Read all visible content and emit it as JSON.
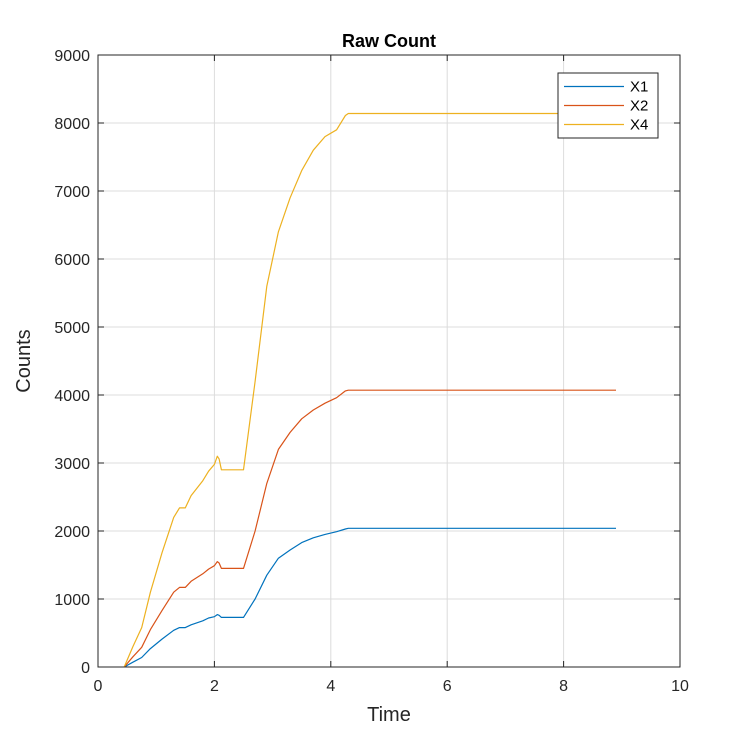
{
  "chart_data": {
    "type": "line",
    "title": "Raw Count",
    "xlabel": "Time",
    "ylabel": "Counts",
    "xlim": [
      0,
      10
    ],
    "ylim": [
      0,
      9000
    ],
    "xticks": [
      0,
      2,
      4,
      6,
      8,
      10
    ],
    "yticks": [
      0,
      1000,
      2000,
      3000,
      4000,
      5000,
      6000,
      7000,
      8000,
      9000
    ],
    "grid": true,
    "legend_position": "top-right",
    "series": [
      {
        "name": "X1",
        "color": "#0072BD",
        "x": [
          0.45,
          0.6,
          0.75,
          0.9,
          1.1,
          1.3,
          1.4,
          1.5,
          1.6,
          1.8,
          1.9,
          2.0,
          2.05,
          2.08,
          2.12,
          2.5,
          2.7,
          2.9,
          3.1,
          3.3,
          3.5,
          3.7,
          3.9,
          4.1,
          4.25,
          4.3,
          4.4,
          6.0,
          8.9
        ],
        "y": [
          0,
          70,
          140,
          270,
          410,
          540,
          580,
          580,
          620,
          680,
          720,
          740,
          770,
          760,
          730,
          730,
          1000,
          1350,
          1600,
          1720,
          1830,
          1900,
          1950,
          1990,
          2030,
          2040,
          2040,
          2040,
          2040
        ]
      },
      {
        "name": "X2",
        "color": "#D95319",
        "x": [
          0.45,
          0.6,
          0.75,
          0.9,
          1.1,
          1.3,
          1.4,
          1.5,
          1.6,
          1.8,
          1.9,
          2.0,
          2.05,
          2.08,
          2.12,
          2.5,
          2.7,
          2.9,
          3.1,
          3.3,
          3.5,
          3.7,
          3.9,
          4.1,
          4.25,
          4.3,
          4.4,
          6.0,
          8.9
        ],
        "y": [
          0,
          150,
          290,
          550,
          830,
          1100,
          1170,
          1170,
          1260,
          1370,
          1440,
          1490,
          1550,
          1530,
          1450,
          1450,
          2000,
          2700,
          3200,
          3450,
          3650,
          3780,
          3880,
          3960,
          4060,
          4070,
          4070,
          4070,
          4070
        ]
      },
      {
        "name": "X4",
        "color": "#EDB120",
        "x": [
          0.45,
          0.6,
          0.75,
          0.9,
          1.1,
          1.3,
          1.4,
          1.5,
          1.6,
          1.8,
          1.9,
          2.0,
          2.05,
          2.08,
          2.12,
          2.5,
          2.7,
          2.9,
          3.1,
          3.3,
          3.5,
          3.7,
          3.9,
          4.1,
          4.25,
          4.3,
          4.4,
          6.0,
          8.9
        ],
        "y": [
          0,
          300,
          580,
          1100,
          1680,
          2200,
          2340,
          2340,
          2520,
          2740,
          2880,
          2980,
          3100,
          3060,
          2900,
          2900,
          4200,
          5600,
          6400,
          6900,
          7300,
          7600,
          7800,
          7900,
          8110,
          8140,
          8140,
          8140,
          8140
        ]
      }
    ]
  }
}
